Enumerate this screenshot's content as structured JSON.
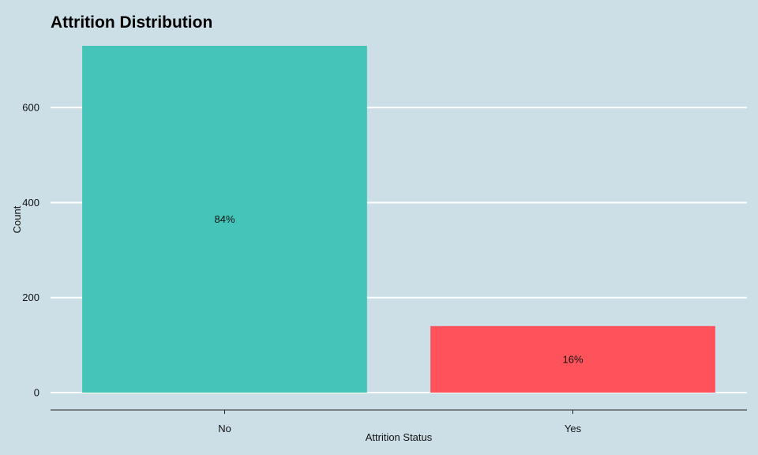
{
  "chart_data": {
    "type": "bar",
    "title": "Attrition Distribution",
    "xlabel": "Attrition Status",
    "ylabel": "Count",
    "categories": [
      "No",
      "Yes"
    ],
    "values": [
      730,
      140
    ],
    "data_labels": [
      "84%",
      "16%"
    ],
    "colors": [
      "#45c5b9",
      "#ff535b"
    ],
    "ylim": [
      0,
      730
    ],
    "yticks": [
      0,
      200,
      400,
      600
    ],
    "grid": "horizontal-major",
    "legend": "none",
    "background": "#cddfe6",
    "grid_color": "#ffffff"
  }
}
